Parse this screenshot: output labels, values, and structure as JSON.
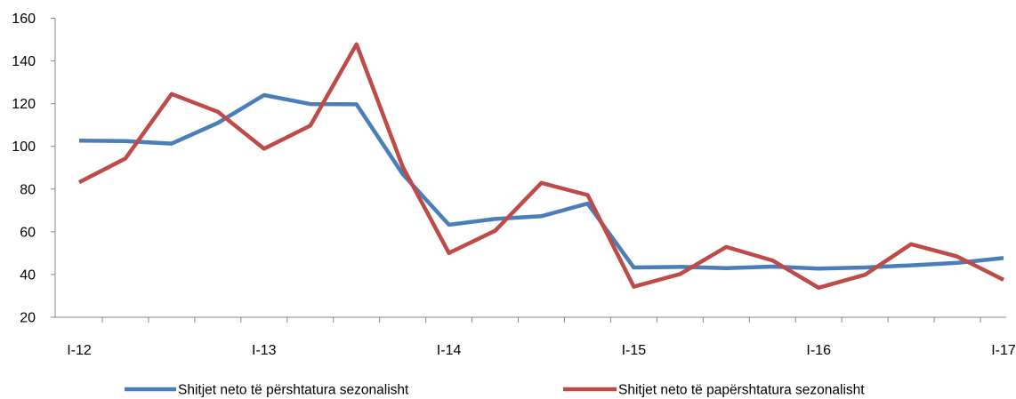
{
  "chart_data": {
    "type": "line",
    "title": "",
    "xlabel": "",
    "ylabel": "",
    "ylim": [
      20,
      160
    ],
    "yticks": [
      20,
      40,
      60,
      80,
      100,
      120,
      140,
      160
    ],
    "x_tick_labels": [
      "I-12",
      "I-13",
      "I-14",
      "I-15",
      "I-16",
      "I-17"
    ],
    "x_tick_label_indices": [
      0,
      4,
      8,
      12,
      16,
      20
    ],
    "grid": false,
    "legend_position": "bottom",
    "series": [
      {
        "name": "Shitjet neto të përshtatura sezonalisht",
        "color": "#4a7ebb",
        "values": [
          102.7,
          102.5,
          101.3,
          111,
          124,
          119.8,
          119.7,
          87,
          63.3,
          66,
          67.3,
          73.2,
          43.3,
          43.6,
          43,
          43.7,
          42.8,
          43.3,
          44.3,
          45.5,
          47.7
        ]
      },
      {
        "name": "Shitjet neto të papërshtatura sezonalisht",
        "color": "#be4b48",
        "values": [
          83.2,
          94.3,
          124.5,
          116.2,
          98.9,
          109.7,
          147.8,
          90.4,
          50.1,
          60.5,
          82.9,
          77.2,
          34.3,
          40.2,
          52.9,
          46.6,
          33.8,
          39.9,
          54.2,
          48.4,
          37.5
        ]
      }
    ]
  }
}
